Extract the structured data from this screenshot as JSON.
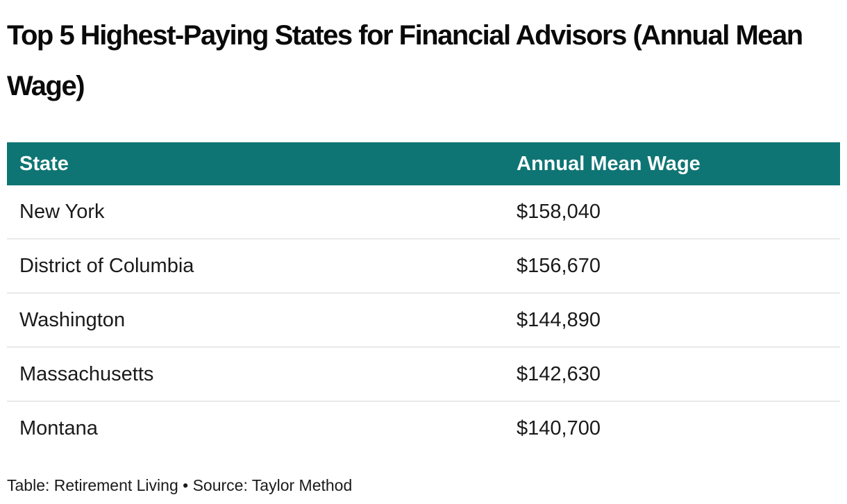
{
  "title": "Top 5 Highest-Paying States for Financial Advisors (Annual Mean Wage)",
  "colors": {
    "header_bg": "#0e7574",
    "header_text": "#ffffff",
    "row_text": "#1a1a1a",
    "divider": "#e9e9e9",
    "background": "#ffffff"
  },
  "table": {
    "columns": [
      {
        "label": "State"
      },
      {
        "label": "Annual Mean Wage"
      }
    ],
    "rows": [
      {
        "state": "New York",
        "wage": "$158,040"
      },
      {
        "state": "District of Columbia",
        "wage": "$156,670"
      },
      {
        "state": "Washington",
        "wage": "$144,890"
      },
      {
        "state": "Massachusetts",
        "wage": "$142,630"
      },
      {
        "state": "Montana",
        "wage": "$140,700"
      }
    ]
  },
  "footer": {
    "credit": "Table: Retirement Living • Source: Taylor Method"
  },
  "chart_data": {
    "type": "table",
    "title": "Top 5 Highest-Paying States for Financial Advisors (Annual Mean Wage)",
    "columns": [
      "State",
      "Annual Mean Wage"
    ],
    "categories": [
      "New York",
      "District of Columbia",
      "Washington",
      "Massachusetts",
      "Montana"
    ],
    "values": [
      158040,
      156670,
      144890,
      142630,
      140700
    ],
    "value_format": "USD",
    "credit": "Table: Retirement Living • Source: Taylor Method"
  }
}
